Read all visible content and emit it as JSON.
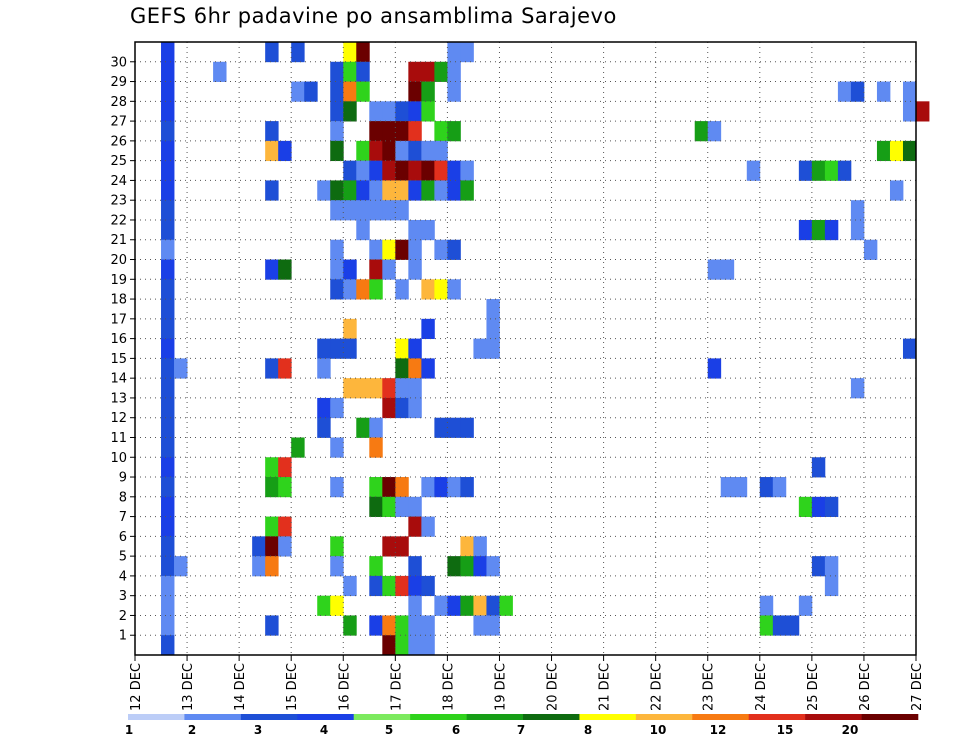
{
  "title": "GEFS 6hr padavine po ansamblima Sarajevo",
  "chart_data": {
    "type": "heatmap",
    "title": "GEFS 6hr padavine po ansamblima Sarajevo",
    "xlabel": "",
    "ylabel": "",
    "x_ticks": [
      "12 DEC",
      "13 DEC",
      "14 DEC",
      "15 DEC",
      "16 DEC",
      "17 DEC",
      "18 DEC",
      "19 DEC",
      "20 DEC",
      "21 DEC",
      "22 DEC",
      "23 DEC",
      "24 DEC",
      "25 DEC",
      "26 DEC",
      "27 DEC"
    ],
    "y_ticks": [
      1,
      2,
      3,
      4,
      5,
      6,
      7,
      8,
      9,
      10,
      11,
      12,
      13,
      14,
      15,
      16,
      17,
      18,
      19,
      20,
      21,
      22,
      23,
      24,
      25,
      26,
      27,
      28,
      29,
      30
    ],
    "x_range": [
      "12 DEC 00Z",
      "27 DEC 00Z"
    ],
    "time_step_hours": 6,
    "grid": true,
    "colorbar": {
      "labels": [
        "1",
        "2",
        "3",
        "4",
        "5",
        "6",
        "7",
        "8",
        "10",
        "12",
        "15",
        "20"
      ],
      "colors": [
        "#bccdf7",
        "#5f8af2",
        "#1e4fd6",
        "#1a3fe6",
        "#7cea5e",
        "#2fd31c",
        "#169e16",
        "#0e6b10",
        "#ffff00",
        "#fdb63c",
        "#f77a12",
        "#e2301d",
        "#a80c0c",
        "#6b0000"
      ]
    },
    "cells": [
      [
        30,
        0.5,
        3
      ],
      [
        30,
        2.5,
        2
      ],
      [
        30,
        3,
        2
      ],
      [
        30,
        6,
        1
      ],
      [
        30,
        6.25,
        1
      ],
      [
        30,
        4,
        8
      ],
      [
        30,
        4.25,
        13
      ],
      [
        29,
        0.5,
        3
      ],
      [
        29,
        1.5,
        1
      ],
      [
        29,
        3.75,
        2
      ],
      [
        29,
        4,
        5
      ],
      [
        29,
        4.25,
        2
      ],
      [
        29,
        5.25,
        12
      ],
      [
        29,
        5.5,
        12
      ],
      [
        29,
        5.75,
        6
      ],
      [
        29,
        6,
        1
      ],
      [
        28,
        0.5,
        3
      ],
      [
        28,
        3,
        1
      ],
      [
        28,
        3.25,
        2
      ],
      [
        28,
        3.75,
        2
      ],
      [
        28,
        4,
        10
      ],
      [
        28,
        4.25,
        5
      ],
      [
        28,
        5.25,
        13
      ],
      [
        28,
        5.5,
        6
      ],
      [
        28,
        6,
        1
      ],
      [
        28,
        13.5,
        1
      ],
      [
        28,
        13.75,
        2
      ],
      [
        28,
        14.25,
        1
      ],
      [
        28,
        14.75,
        1
      ],
      [
        27,
        0.5,
        3
      ],
      [
        27,
        3.75,
        2
      ],
      [
        27,
        4,
        7
      ],
      [
        27,
        4.5,
        1
      ],
      [
        27,
        4.75,
        1
      ],
      [
        27,
        5,
        2
      ],
      [
        27,
        5.25,
        3
      ],
      [
        27,
        5.5,
        5
      ],
      [
        27,
        14.75,
        1
      ],
      [
        27,
        15,
        12
      ],
      [
        26,
        0.5,
        2
      ],
      [
        26,
        2.5,
        2
      ],
      [
        26,
        3.75,
        1
      ],
      [
        26,
        4.5,
        13
      ],
      [
        26,
        4.75,
        13
      ],
      [
        26,
        5,
        13
      ],
      [
        26,
        5.25,
        11
      ],
      [
        26,
        5.75,
        5
      ],
      [
        26,
        6,
        6
      ],
      [
        26,
        10.75,
        6
      ],
      [
        26,
        11,
        1
      ],
      [
        25,
        0.5,
        3
      ],
      [
        25,
        2.5,
        9
      ],
      [
        25,
        2.75,
        3
      ],
      [
        25,
        3.75,
        7
      ],
      [
        25,
        4.25,
        5
      ],
      [
        25,
        4.5,
        12
      ],
      [
        25,
        4.75,
        13
      ],
      [
        25,
        5,
        1
      ],
      [
        25,
        5.25,
        2
      ],
      [
        25,
        5.5,
        1
      ],
      [
        25,
        5.75,
        1
      ],
      [
        25,
        14.25,
        6
      ],
      [
        25,
        14.5,
        8
      ],
      [
        25,
        14.75,
        7
      ],
      [
        24,
        0.5,
        3
      ],
      [
        24,
        4,
        2
      ],
      [
        24,
        4.25,
        1
      ],
      [
        24,
        4.5,
        3
      ],
      [
        24,
        4.75,
        12
      ],
      [
        24,
        5,
        13
      ],
      [
        24,
        5.25,
        12
      ],
      [
        24,
        5.5,
        13
      ],
      [
        24,
        5.75,
        11
      ],
      [
        24,
        6,
        3
      ],
      [
        24,
        6.25,
        1
      ],
      [
        24,
        11.75,
        1
      ],
      [
        24,
        12.75,
        2
      ],
      [
        24,
        13,
        6
      ],
      [
        24,
        13.25,
        5
      ],
      [
        24,
        13.5,
        2
      ],
      [
        23,
        0.5,
        3
      ],
      [
        23,
        2.5,
        2
      ],
      [
        23,
        3.5,
        1
      ],
      [
        23,
        3.75,
        7
      ],
      [
        23,
        4,
        6
      ],
      [
        23,
        4.25,
        3
      ],
      [
        23,
        4.5,
        1
      ],
      [
        23,
        4.75,
        9
      ],
      [
        23,
        5,
        9
      ],
      [
        23,
        5.25,
        3
      ],
      [
        23,
        5.5,
        6
      ],
      [
        23,
        5.75,
        1
      ],
      [
        23,
        6,
        3
      ],
      [
        23,
        6.25,
        6
      ],
      [
        23,
        14.5,
        1
      ],
      [
        22,
        0.5,
        2
      ],
      [
        22,
        3.75,
        1
      ],
      [
        22,
        4,
        1
      ],
      [
        22,
        4.25,
        1
      ],
      [
        22,
        4.5,
        1
      ],
      [
        22,
        4.75,
        1
      ],
      [
        22,
        5,
        1
      ],
      [
        22,
        13.75,
        1
      ],
      [
        21,
        0.5,
        2
      ],
      [
        21,
        4.25,
        1
      ],
      [
        21,
        5.25,
        1
      ],
      [
        21,
        5.5,
        1
      ],
      [
        21,
        12.75,
        3
      ],
      [
        21,
        13,
        6
      ],
      [
        21,
        13.25,
        3
      ],
      [
        21,
        13.75,
        1
      ],
      [
        20,
        0.5,
        1
      ],
      [
        20,
        3.75,
        1
      ],
      [
        20,
        4.5,
        1
      ],
      [
        20,
        4.75,
        8
      ],
      [
        20,
        5,
        13
      ],
      [
        20,
        5.25,
        1
      ],
      [
        20,
        5.75,
        1
      ],
      [
        20,
        6,
        2
      ],
      [
        20,
        14,
        1
      ],
      [
        19,
        0.5,
        3
      ],
      [
        19,
        2.5,
        3
      ],
      [
        19,
        2.75,
        7
      ],
      [
        19,
        3.75,
        1
      ],
      [
        19,
        4,
        3
      ],
      [
        19,
        4.5,
        12
      ],
      [
        19,
        4.75,
        1
      ],
      [
        19,
        5.25,
        1
      ],
      [
        19,
        11,
        1
      ],
      [
        19,
        11.25,
        1
      ],
      [
        18,
        0.5,
        2
      ],
      [
        18,
        3.75,
        2
      ],
      [
        18,
        4,
        1
      ],
      [
        18,
        4.25,
        10
      ],
      [
        18,
        4.5,
        5
      ],
      [
        18,
        5,
        1
      ],
      [
        18,
        5.5,
        9
      ],
      [
        18,
        5.75,
        8
      ],
      [
        18,
        6,
        1
      ],
      [
        17,
        0.5,
        2
      ],
      [
        17,
        6.75,
        1
      ],
      [
        16,
        0.5,
        2
      ],
      [
        16,
        4,
        9
      ],
      [
        16,
        5.5,
        3
      ],
      [
        16,
        6.75,
        1
      ],
      [
        15,
        0.5,
        3
      ],
      [
        15,
        3.5,
        2
      ],
      [
        15,
        3.75,
        2
      ],
      [
        15,
        4,
        2
      ],
      [
        15,
        5,
        8
      ],
      [
        15,
        5.25,
        3
      ],
      [
        15,
        6.5,
        1
      ],
      [
        15,
        6.75,
        1
      ],
      [
        15,
        14.75,
        2
      ],
      [
        14,
        0.5,
        2
      ],
      [
        14,
        0.75,
        1
      ],
      [
        14,
        2.5,
        2
      ],
      [
        14,
        2.75,
        11
      ],
      [
        14,
        3.5,
        1
      ],
      [
        14,
        5,
        7
      ],
      [
        14,
        5.25,
        10
      ],
      [
        14,
        5.5,
        3
      ],
      [
        14,
        11,
        3
      ],
      [
        13,
        0.5,
        2
      ],
      [
        13,
        4,
        9
      ],
      [
        13,
        4.25,
        9
      ],
      [
        13,
        4.5,
        9
      ],
      [
        13,
        4.75,
        11
      ],
      [
        13,
        5,
        1
      ],
      [
        13,
        5.25,
        1
      ],
      [
        13,
        13.75,
        1
      ],
      [
        12,
        0.5,
        2
      ],
      [
        12,
        3.5,
        3
      ],
      [
        12,
        3.75,
        1
      ],
      [
        12,
        4.75,
        12
      ],
      [
        12,
        5,
        2
      ],
      [
        12,
        5.25,
        1
      ],
      [
        11,
        0.5,
        2
      ],
      [
        11,
        3.5,
        2
      ],
      [
        11,
        4.25,
        6
      ],
      [
        11,
        4.5,
        1
      ],
      [
        11,
        5.75,
        2
      ],
      [
        11,
        6,
        2
      ],
      [
        11,
        6.25,
        2
      ],
      [
        10,
        0.5,
        2
      ],
      [
        10,
        3,
        6
      ],
      [
        10,
        3.75,
        1
      ],
      [
        10,
        4.5,
        10
      ],
      [
        9,
        0.5,
        3
      ],
      [
        9,
        2.5,
        5
      ],
      [
        9,
        2.75,
        11
      ],
      [
        9,
        13,
        2
      ],
      [
        8,
        0.5,
        2
      ],
      [
        8,
        2.5,
        6
      ],
      [
        8,
        2.75,
        5
      ],
      [
        8,
        3.75,
        1
      ],
      [
        8,
        4.5,
        5
      ],
      [
        8,
        4.75,
        13
      ],
      [
        8,
        5,
        10
      ],
      [
        8,
        5.5,
        1
      ],
      [
        8,
        5.75,
        3
      ],
      [
        8,
        6,
        1
      ],
      [
        8,
        6.25,
        2
      ],
      [
        8,
        11.25,
        1
      ],
      [
        8,
        11.5,
        1
      ],
      [
        8,
        12,
        2
      ],
      [
        8,
        12.25,
        1
      ],
      [
        7,
        0.5,
        3
      ],
      [
        7,
        4.5,
        7
      ],
      [
        7,
        4.75,
        5
      ],
      [
        7,
        5,
        1
      ],
      [
        7,
        5.25,
        1
      ],
      [
        7,
        12.75,
        5
      ],
      [
        7,
        13,
        3
      ],
      [
        7,
        13.25,
        2
      ],
      [
        6,
        0.5,
        3
      ],
      [
        6,
        2.5,
        5
      ],
      [
        6,
        2.75,
        11
      ],
      [
        6,
        5.25,
        12
      ],
      [
        6,
        5.5,
        1
      ],
      [
        5,
        0.5,
        2
      ],
      [
        5,
        2.25,
        2
      ],
      [
        5,
        2.5,
        13
      ],
      [
        5,
        2.75,
        1
      ],
      [
        5,
        3.75,
        5
      ],
      [
        5,
        4.75,
        12
      ],
      [
        5,
        5,
        12
      ],
      [
        5,
        6.25,
        9
      ],
      [
        5,
        6.5,
        1
      ],
      [
        4,
        0.5,
        2
      ],
      [
        4,
        0.75,
        1
      ],
      [
        4,
        2.25,
        1
      ],
      [
        4,
        2.5,
        10
      ],
      [
        4,
        3.75,
        1
      ],
      [
        4,
        4.5,
        5
      ],
      [
        4,
        5.25,
        2
      ],
      [
        4,
        6,
        7
      ],
      [
        4,
        6.25,
        6
      ],
      [
        4,
        6.5,
        3
      ],
      [
        4,
        6.75,
        1
      ],
      [
        4,
        13,
        2
      ],
      [
        4,
        13.25,
        1
      ],
      [
        3,
        0.5,
        1
      ],
      [
        3,
        4,
        1
      ],
      [
        3,
        4.5,
        2
      ],
      [
        3,
        4.75,
        5
      ],
      [
        3,
        5,
        11
      ],
      [
        3,
        5.25,
        3
      ],
      [
        3,
        5.5,
        2
      ],
      [
        3,
        13.25,
        1
      ],
      [
        2,
        0.5,
        1
      ],
      [
        2,
        3.5,
        5
      ],
      [
        2,
        3.75,
        8
      ],
      [
        2,
        5.25,
        1
      ],
      [
        2,
        5.75,
        1
      ],
      [
        2,
        6,
        3
      ],
      [
        2,
        6.25,
        6
      ],
      [
        2,
        6.5,
        9
      ],
      [
        2,
        6.75,
        2
      ],
      [
        2,
        7,
        5
      ],
      [
        2,
        12,
        1
      ],
      [
        2,
        12.75,
        1
      ],
      [
        1,
        0.5,
        1
      ],
      [
        1,
        2.5,
        2
      ],
      [
        1,
        4,
        6
      ],
      [
        1,
        4.5,
        3
      ],
      [
        1,
        4.75,
        10
      ],
      [
        1,
        5,
        5
      ],
      [
        1,
        5.25,
        1
      ],
      [
        1,
        5.5,
        1
      ],
      [
        1,
        6.5,
        1
      ],
      [
        1,
        6.75,
        1
      ],
      [
        1,
        12,
        5
      ],
      [
        1,
        12.25,
        2
      ],
      [
        1,
        12.5,
        2
      ],
      [
        0,
        0.5,
        2
      ],
      [
        0,
        4.75,
        13
      ],
      [
        0,
        5,
        5
      ],
      [
        0,
        5.25,
        1
      ],
      [
        0,
        5.5,
        1
      ]
    ]
  }
}
